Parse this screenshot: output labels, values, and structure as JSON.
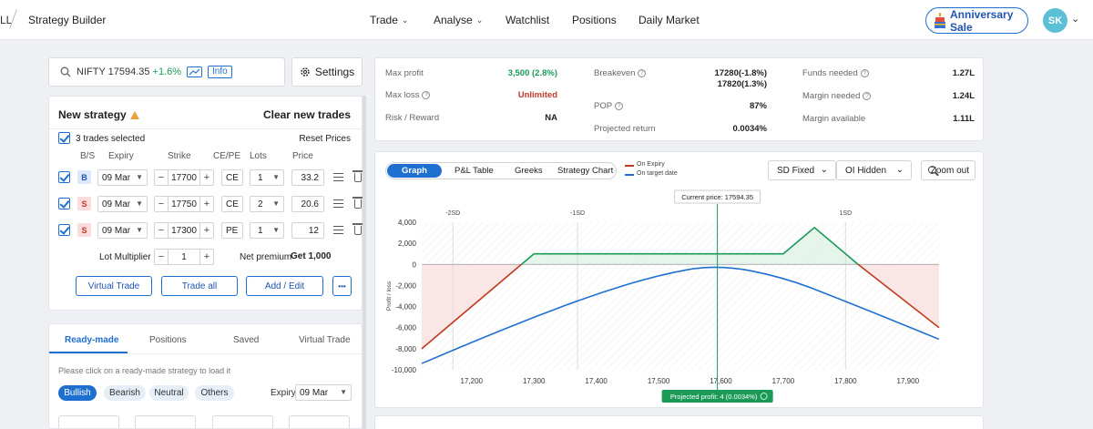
{
  "nav": {
    "prev_crumb": "LL",
    "crumb": "Strategy Builder",
    "items": [
      {
        "label": "Trade",
        "has_chevron": true
      },
      {
        "label": "Analyse",
        "has_chevron": true
      },
      {
        "label": "Watchlist",
        "has_chevron": false
      },
      {
        "label": "Positions",
        "has_chevron": false
      },
      {
        "label": "Daily Market",
        "has_chevron": false
      }
    ],
    "sale_button": "Anniversary Sale",
    "avatar": "SK"
  },
  "search": {
    "symbol": "NIFTY 17594.35",
    "change": "+1.6%",
    "info_label": "Info",
    "change_color": "#1b9a57"
  },
  "settings_label": "Settings",
  "strategy": {
    "title": "New strategy",
    "clear_label": "Clear new trades",
    "selected_text": "3 trades selected",
    "reset_label": "Reset Prices",
    "headers": {
      "bs": "B/S",
      "expiry": "Expiry",
      "strike": "Strike",
      "cepe": "CE/PE",
      "lots": "Lots",
      "price": "Price"
    },
    "rows": [
      {
        "side": "B",
        "expiry": "09 Mar",
        "strike": "17700",
        "type": "CE",
        "lots": "1",
        "price": "33.2"
      },
      {
        "side": "S",
        "expiry": "09 Mar",
        "strike": "17750",
        "type": "CE",
        "lots": "2",
        "price": "20.6"
      },
      {
        "side": "S",
        "expiry": "09 Mar",
        "strike": "17300",
        "type": "PE",
        "lots": "1",
        "price": "12"
      }
    ],
    "lot_multiplier_label": "Lot Multiplier",
    "lot_multiplier": "1",
    "net_premium_label": "Net premium",
    "net_premium_value": "Get 1,000",
    "buttons": {
      "virtual": "Virtual Trade",
      "trade_all": "Trade all",
      "add_edit": "Add / Edit",
      "more": "•••"
    }
  },
  "lower_tabs": {
    "tabs": [
      "Ready-made",
      "Positions",
      "Saved",
      "Virtual Trade"
    ],
    "hint": "Please click on a ready-made strategy to load it",
    "filters": [
      "Bullish",
      "Bearish",
      "Neutral",
      "Others"
    ],
    "expiry_label": "Expiry",
    "expiry_value": "09 Mar"
  },
  "metrics": {
    "max_profit_label": "Max profit",
    "max_profit": "3,500 (2.8%)",
    "max_loss_label": "Max loss",
    "max_loss": "Unlimited",
    "rr_label": "Risk / Reward",
    "rr": "NA",
    "breakeven_label": "Breakeven",
    "breakeven_1": "17280(-1.8%)",
    "breakeven_2": "17820(1.3%)",
    "pop_label": "POP",
    "pop": "87%",
    "proj_return_label": "Projected return",
    "proj_return": "0.0034%",
    "funds_label": "Funds needed",
    "funds": "1.27L",
    "margin_needed_label": "Margin needed",
    "margin_needed": "1.24L",
    "margin_avail_label": "Margin available",
    "margin_avail": "1.11L",
    "profit_color": "#1b9a57",
    "loss_color": "#c0392b"
  },
  "graph_tabs": [
    "Graph",
    "P&L Table",
    "Greeks",
    "Strategy Chart"
  ],
  "legend": [
    {
      "label": "On Expiry",
      "color": "#c0391b"
    },
    {
      "label": "On target date",
      "color": "#1f6fd1"
    }
  ],
  "sd_select": "SD Fixed",
  "oi_select": "OI Hidden",
  "zoom_label": "Zoom out",
  "chart_data": {
    "type": "line",
    "current_price_label": "Current price: 17594.35",
    "current_price": 17594.35,
    "ylabel": "Profit / loss",
    "xlim": [
      17120,
      17950
    ],
    "ylim": [
      -10000,
      4000
    ],
    "x_ticks": [
      "17,200",
      "17,300",
      "17,400",
      "17,500",
      "17,600",
      "17,700",
      "17,800",
      "17,900"
    ],
    "x_tick_values": [
      17200,
      17300,
      17400,
      17500,
      17600,
      17700,
      17800,
      17900
    ],
    "y_ticks": [
      "4,000",
      "2,000",
      "0",
      "-2,000",
      "-4,000",
      "-6,000",
      "-8,000",
      "-10,000"
    ],
    "y_tick_values": [
      4000,
      2000,
      0,
      -2000,
      -4000,
      -6000,
      -8000,
      -10000
    ],
    "sd_markers": [
      {
        "label": "-2SD",
        "x": 17170
      },
      {
        "label": "-1SD",
        "x": 17370
      },
      {
        "label": "1SD",
        "x": 17800
      }
    ],
    "series": [
      {
        "name": "On Expiry",
        "color": "#c0391b",
        "x": [
          17120,
          17300,
          17700,
          17750,
          17950
        ],
        "y": [
          -8000,
          1000,
          1000,
          3500,
          -6000
        ]
      },
      {
        "name": "On target date",
        "color": "#1f6fd1",
        "x": [
          17120,
          17200,
          17300,
          17400,
          17500,
          17594,
          17700,
          17800,
          17900,
          17950
        ],
        "y": [
          -9400,
          -7400,
          -5000,
          -2800,
          -1000,
          4,
          -1200,
          -3500,
          -5900,
          -7100
        ]
      }
    ],
    "projected_label": "Projected profit: 4 (0.0034%)",
    "profit_fill": "#e3f4ea",
    "loss_fill": "#fbe3e3",
    "profit_line": "#1b9a57"
  }
}
